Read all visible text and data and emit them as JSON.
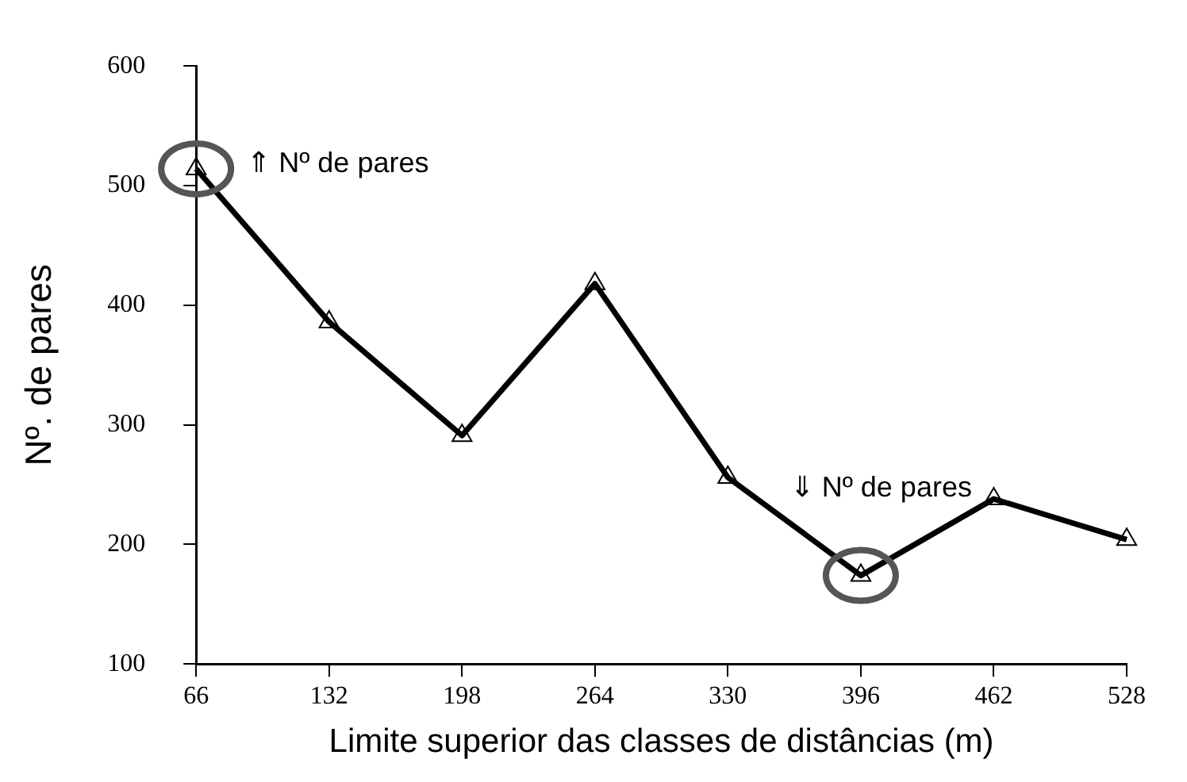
{
  "chart_data": {
    "type": "line",
    "xlabel": "Limite superior das classes de distâncias (m)",
    "ylabel": "Nº. de pares",
    "x": [
      66,
      132,
      198,
      264,
      330,
      396,
      462,
      528
    ],
    "series": [
      {
        "color": "#000000",
        "values": [
          514,
          386,
          291,
          418,
          256,
          174,
          238,
          204
        ]
      }
    ],
    "xlim": [
      66,
      528
    ],
    "xticks": [
      66,
      132,
      198,
      264,
      330,
      396,
      462,
      528
    ],
    "ylim": [
      100,
      600
    ],
    "yticks": [
      100,
      200,
      300,
      400,
      500,
      600
    ],
    "annotations": [
      {
        "text": "⇑ Nº de pares",
        "x": 66,
        "y": 514
      },
      {
        "text": "⇓ Nº de pares",
        "x": 396,
        "y": 174
      }
    ],
    "grid": false,
    "legend": false,
    "marker": "triangle",
    "line_style": "solid"
  }
}
